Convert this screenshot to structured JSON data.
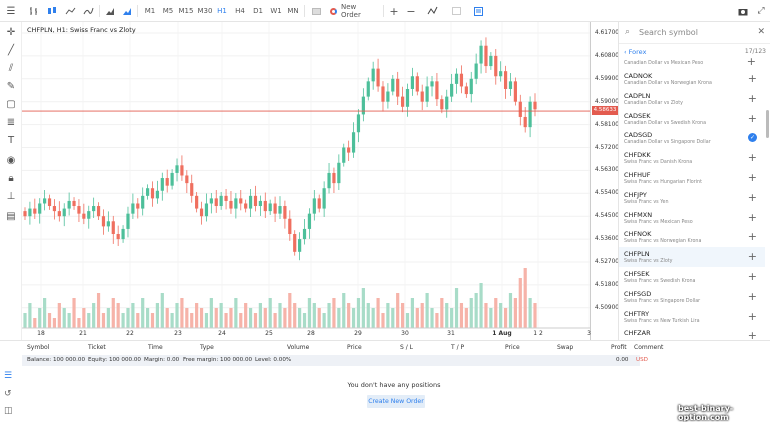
{
  "toolbar": {
    "timeframes": [
      "M1",
      "M5",
      "M15",
      "M30",
      "H1",
      "H4",
      "D1",
      "W1",
      "MN"
    ],
    "active_timeframe": "H1",
    "new_order": "New Order"
  },
  "chart": {
    "title": "CHFPLN, H1: Swiss Franc vs Zloty",
    "current_price": "4.58633",
    "current_price_color": "#e35b4f",
    "up_color": "#4dbf9a",
    "down_color": "#ef6f5f"
  },
  "chart_data": {
    "type": "candlestick",
    "symbol": "CHFPLN",
    "timeframe": "H1",
    "y_ticks": [
      "4.61700",
      "4.60800",
      "4.59900",
      "4.59000",
      "4.58100",
      "4.57200",
      "4.56300",
      "4.55400",
      "4.54500",
      "4.53600",
      "4.52700",
      "4.51800",
      "4.50900"
    ],
    "ylim": [
      4.505,
      4.619
    ],
    "x_ticks": [
      "18",
      "21",
      "22",
      "23",
      "24",
      "25",
      "28",
      "29",
      "30",
      "31",
      "1 Aug",
      "1 2",
      "3"
    ],
    "closes": [
      4.545,
      4.548,
      4.546,
      4.55,
      4.552,
      4.549,
      4.547,
      4.545,
      4.548,
      4.551,
      4.549,
      4.546,
      4.544,
      4.547,
      4.549,
      4.545,
      4.541,
      4.543,
      4.538,
      4.536,
      4.54,
      4.546,
      4.55,
      4.548,
      4.553,
      4.556,
      4.552,
      4.555,
      4.56,
      4.557,
      4.562,
      4.565,
      4.561,
      4.558,
      4.553,
      4.548,
      4.545,
      4.55,
      4.552,
      4.549,
      4.553,
      4.551,
      4.548,
      4.552,
      4.55,
      4.548,
      4.553,
      4.549,
      4.551,
      4.547,
      4.55,
      4.546,
      4.549,
      4.544,
      4.538,
      4.531,
      4.536,
      4.54,
      4.546,
      4.552,
      4.548,
      4.556,
      4.562,
      4.558,
      4.566,
      4.572,
      4.57,
      4.578,
      4.585,
      4.592,
      4.598,
      4.603,
      4.596,
      4.59,
      4.594,
      4.599,
      4.592,
      4.588,
      4.595,
      4.6,
      4.594,
      4.59,
      4.596,
      4.598,
      4.591,
      4.587,
      4.592,
      4.597,
      4.601,
      4.596,
      4.593,
      4.599,
      4.605,
      4.612,
      4.604,
      4.608,
      4.6,
      4.602,
      4.595,
      4.598,
      4.59,
      4.584,
      4.58,
      4.59,
      4.587
    ],
    "volumes": [
      3,
      5,
      2,
      4,
      6,
      3,
      2,
      5,
      4,
      3,
      6,
      2,
      4,
      3,
      5,
      7,
      3,
      4,
      6,
      5,
      3,
      4,
      5,
      3,
      6,
      4,
      3,
      5,
      7,
      4,
      3,
      5,
      6,
      4,
      3,
      5,
      4,
      3,
      6,
      4,
      5,
      3,
      4,
      6,
      3,
      5,
      4,
      3,
      5,
      4,
      6,
      3,
      5,
      4,
      7,
      5,
      4,
      3,
      6,
      5,
      4,
      3,
      5,
      6,
      4,
      7,
      5,
      4,
      6,
      8,
      5,
      4,
      6,
      3,
      5,
      4,
      7,
      5,
      3,
      6,
      4,
      5,
      7,
      4,
      3,
      6,
      5,
      4,
      8,
      5,
      4,
      6,
      7,
      9,
      5,
      4,
      6,
      5,
      4,
      7,
      6,
      10,
      12,
      6,
      5
    ]
  },
  "symbols": {
    "search_placeholder": "Search symbol",
    "category": "Forex",
    "count": "17/123",
    "partial_top": "Canadian Dollar vs Mexican Peso",
    "items": [
      {
        "symbol": "CADNOK",
        "desc": "Canadian Dollar vs Norwegian Krona"
      },
      {
        "symbol": "CADPLN",
        "desc": "Canadian Dollar vs Zloty"
      },
      {
        "symbol": "CADSEK",
        "desc": "Canadian Dollar vs Swedish Krona"
      },
      {
        "symbol": "CADSGD",
        "desc": "Canadian Dollar vs Singapore Dollar"
      },
      {
        "symbol": "CHFDKK",
        "desc": "Swiss Franc vs Danish Krona"
      },
      {
        "symbol": "CHFHUF",
        "desc": "Swiss Franc vs Hungarian Florint"
      },
      {
        "symbol": "CHFJPY",
        "desc": "Swiss Franc vs Yen"
      },
      {
        "symbol": "CHFMXN",
        "desc": "Swiss Franc vs Mexican Peso"
      },
      {
        "symbol": "CHFNOK",
        "desc": "Swiss Franc vs Norwegian Krona"
      },
      {
        "symbol": "CHFPLN",
        "desc": "Swiss Franc vs Zloty"
      },
      {
        "symbol": "CHFSEK",
        "desc": "Swiss Franc vs Swedish Krona"
      },
      {
        "symbol": "CHFSGD",
        "desc": "Swiss Franc vs Singapore Dollar"
      },
      {
        "symbol": "CHFTRY",
        "desc": "Swiss Franc vs New Turkish Lira"
      },
      {
        "symbol": "CHFZAR",
        "desc": ""
      }
    ]
  },
  "positions": {
    "columns": [
      "Symbol",
      "Ticket",
      "Time",
      "Type",
      "Volume",
      "Price",
      "S / L",
      "T / P",
      "Price",
      "Swap",
      "Profit",
      "Comment"
    ],
    "balance": "Balance: 100 000.00",
    "equity": "Equity: 100 000.00",
    "margin": "Margin: 0.00",
    "free_margin": "Free margin: 100 000.00",
    "level": "Level: 0.00%",
    "profit": "0.00",
    "currency": "USD",
    "empty": "You don't have any positions",
    "create": "Create New Order"
  },
  "watermark": "best-binary-option.com"
}
